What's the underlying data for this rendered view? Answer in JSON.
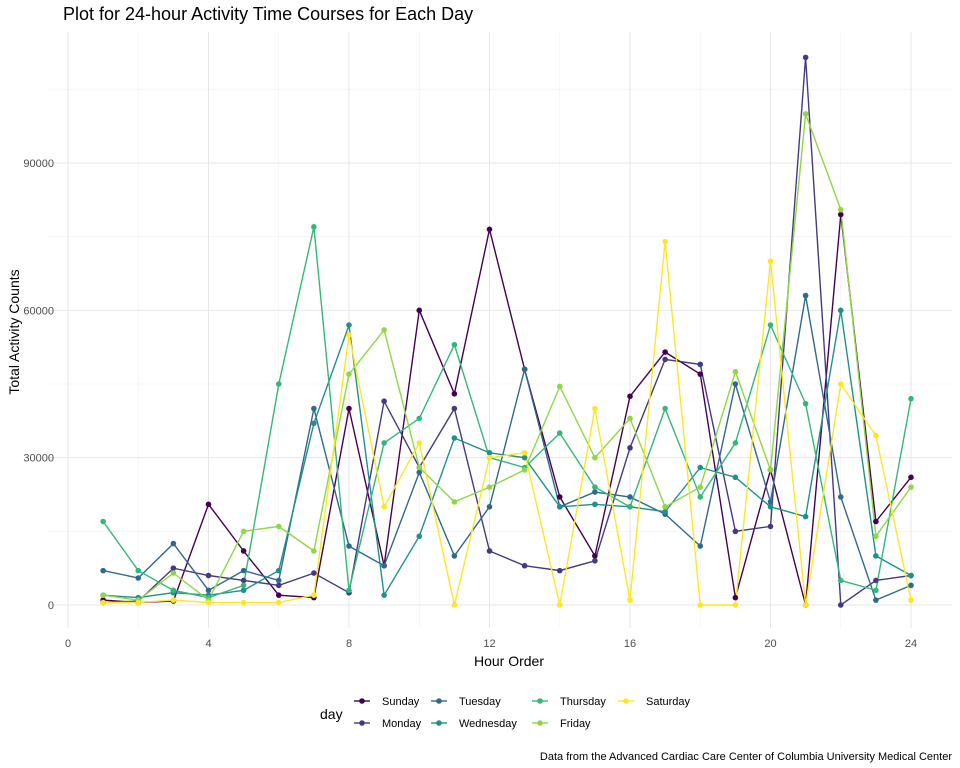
{
  "chart_data": {
    "type": "line",
    "title": "Plot for 24-hour Activity Time Courses for Each Day",
    "xlabel": "Hour Order",
    "ylabel": "Total Activity Counts",
    "caption": "Data from the Advanced Cardiac Care Center of Columbia University Medical Center",
    "xlim": [
      0,
      24
    ],
    "ylim": [
      0,
      110000
    ],
    "x_ticks": [
      0,
      4,
      8,
      12,
      16,
      20,
      24
    ],
    "y_ticks": [
      0,
      30000,
      60000,
      90000
    ],
    "grid": true,
    "legend_title": "day",
    "legend_position": "bottom",
    "series": [
      {
        "name": "Sunday",
        "color": "#440154",
        "values": [
          1000,
          500,
          800,
          20500,
          11000,
          2000,
          1500,
          40000,
          8000,
          60000,
          43000,
          76500,
          48000,
          22000,
          10000,
          42500,
          51500,
          47000,
          1500,
          27500,
          0,
          79500,
          17000,
          26000
        ]
      },
      {
        "name": "Monday",
        "color": "#443A83",
        "values": [
          500,
          800,
          7500,
          6000,
          5000,
          4000,
          6500,
          2500,
          41500,
          28000,
          40000,
          11000,
          8000,
          7000,
          9000,
          32000,
          50000,
          49000,
          15000,
          16000,
          111500,
          0,
          5000,
          6000
        ]
      },
      {
        "name": "Tuesday",
        "color": "#31688E",
        "values": [
          7000,
          5500,
          12500,
          3000,
          7000,
          5000,
          40000,
          12000,
          8000,
          27000,
          10000,
          20000,
          48000,
          20000,
          23000,
          22000,
          18500,
          12000,
          45000,
          21000,
          63000,
          22000,
          1000,
          4000
        ]
      },
      {
        "name": "Wednesday",
        "color": "#21908C",
        "values": [
          2000,
          1500,
          2500,
          2000,
          3000,
          7000,
          37000,
          57000,
          2000,
          14000,
          34000,
          31000,
          30000,
          20000,
          20500,
          20000,
          19000,
          28000,
          26000,
          20000,
          18000,
          60000,
          10000,
          6000
        ]
      },
      {
        "name": "Thursday",
        "color": "#35B779",
        "values": [
          17000,
          7000,
          3000,
          1500,
          4000,
          45000,
          77000,
          3000,
          33000,
          38000,
          53000,
          30000,
          28000,
          35000,
          24000,
          20000,
          40000,
          22000,
          33000,
          57000,
          41000,
          5000,
          3000,
          42000
        ]
      },
      {
        "name": "Friday",
        "color": "#8FD744",
        "values": [
          2000,
          1000,
          6500,
          1000,
          15000,
          16000,
          11000,
          47000,
          56000,
          28000,
          21000,
          24000,
          27500,
          44500,
          30000,
          38000,
          20000,
          24000,
          47500,
          27500,
          100000,
          80500,
          14000,
          24000
        ]
      },
      {
        "name": "Saturday",
        "color": "#FDE725",
        "values": [
          500,
          500,
          1000,
          500,
          500,
          500,
          2000,
          55000,
          20000,
          33000,
          0,
          30000,
          31000,
          0,
          40000,
          1000,
          74000,
          0,
          0,
          70000,
          0,
          45000,
          34500,
          1000
        ]
      }
    ]
  }
}
